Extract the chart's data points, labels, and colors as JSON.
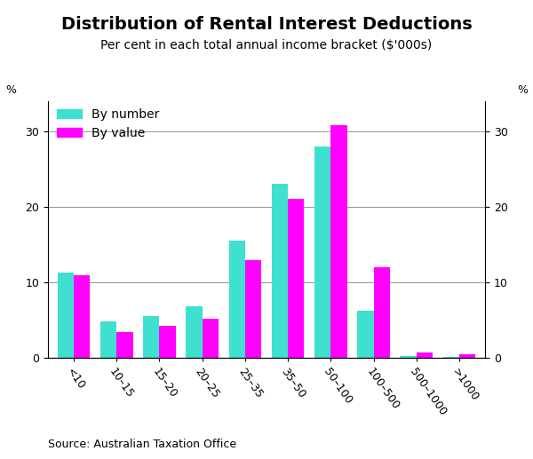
{
  "title": "Distribution of Rental Interest Deductions",
  "subtitle": "Per cent in each total annual income bracket ($'000s)",
  "categories": [
    "<10",
    "10–15",
    "15–20",
    "20–25",
    "25–35",
    "35–50",
    "50–100",
    "100–500",
    "500–1000",
    ">1000"
  ],
  "by_number": [
    11.3,
    4.8,
    5.6,
    6.8,
    15.5,
    23.0,
    28.0,
    6.3,
    0.3,
    0.1
  ],
  "by_value": [
    10.9,
    3.4,
    4.3,
    5.2,
    13.0,
    21.0,
    30.8,
    12.0,
    0.7,
    0.5
  ],
  "color_number": "#40E0D0",
  "color_value": "#FF00FF",
  "ylabel_left": "%",
  "ylabel_right": "%",
  "ylim": [
    0,
    34
  ],
  "yticks": [
    0,
    10,
    20,
    30
  ],
  "source": "Source: Australian Taxation Office",
  "bar_width": 0.38,
  "title_fontsize": 14,
  "subtitle_fontsize": 10,
  "tick_fontsize": 9,
  "legend_fontsize": 10,
  "source_fontsize": 9
}
